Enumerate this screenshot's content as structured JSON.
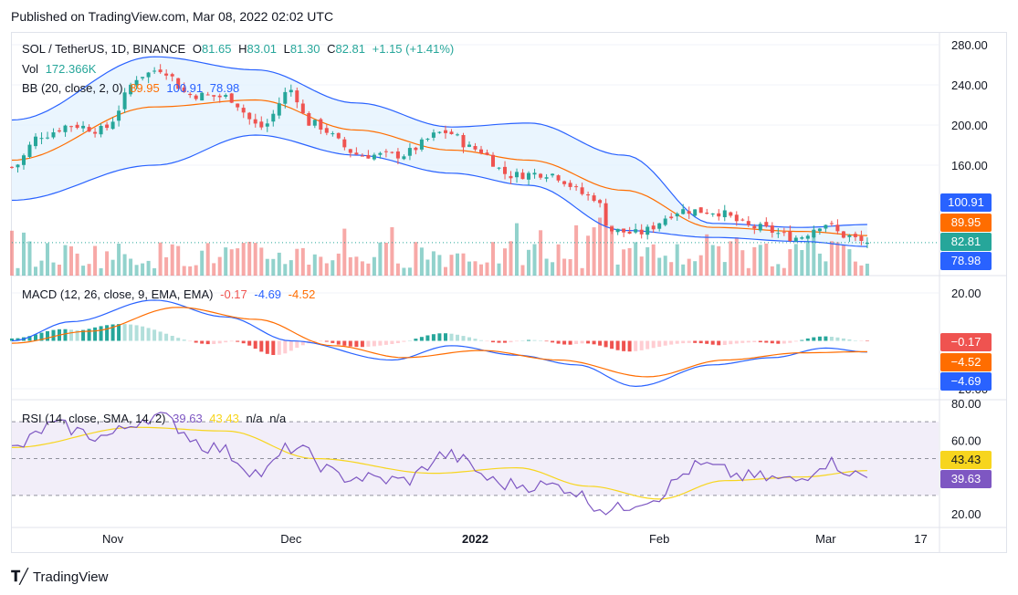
{
  "header": {
    "published": "Published on TradingView.com, Mar 08, 2022 02:02 UTC"
  },
  "footer": {
    "logo_text": "TradingView"
  },
  "price_legend": {
    "symbol": "SOL / TetherUS, 1D, BINANCE",
    "o_label": "O",
    "o": "81.65",
    "h_label": "H",
    "h": "83.01",
    "l_label": "L",
    "l": "81.30",
    "c_label": "C",
    "c": "82.81",
    "change": "+1.15 (+1.41%)",
    "vol_label": "Vol",
    "vol": "172.366K",
    "bb_label": "BB (20, close, 2, 0)",
    "bb_basis": "89.95",
    "bb_upper": "100.91",
    "bb_lower": "78.98"
  },
  "macd_legend": {
    "label": "MACD (12, 26, close, 9, EMA, EMA)",
    "hist": "-0.17",
    "macd": "-4.69",
    "signal": "-4.52"
  },
  "rsi_legend": {
    "label": "RSI (14, close, SMA, 14, 2)",
    "rsi": "39.63",
    "ma": "43.43",
    "na1": "n/a",
    "na2": "n/a"
  },
  "axis_pills": {
    "bb_upper": "100.91",
    "bb_basis": "89.95",
    "last_price": "82.81",
    "bb_lower": "78.98",
    "macd_hist": "−0.17",
    "macd_signal": "−4.52",
    "macd_line": "−4.69",
    "rsi_ma": "43.43",
    "rsi_value": "39.63"
  },
  "colors": {
    "up": "#26a69a",
    "down": "#ef5350",
    "bb_band": "#2962ff",
    "bb_basis": "#ff6d00",
    "bb_fill": "#e3f2fd",
    "macd_line": "#2962ff",
    "signal_line": "#ff6d00",
    "rsi_line": "#7e57c2",
    "rsi_ma": "#f7d51e",
    "rsi_fill": "#ede7f6",
    "last_price": "#26a69a",
    "pill_lower": "#2962ff",
    "macd_hist_pill": "#ef5350"
  },
  "chart_data": [
    {
      "type": "candlestick",
      "pane": "price",
      "y_ticks": [
        "280.00",
        "240.00",
        "200.00",
        "160.00"
      ],
      "ylim": [
        80,
        280
      ],
      "x_ticks": [
        "Nov",
        "Dec",
        "2022",
        "Feb",
        "Mar",
        "17"
      ],
      "x_tick_dates": [
        "2021-11-01",
        "2021-12-01",
        "2022-01-01",
        "2022-02-01",
        "2022-03-01",
        "2022-03-17"
      ],
      "xlim": [
        "2021-10-15",
        "2022-03-20"
      ],
      "last_date": "2022-03-08",
      "price_path_anchors": [
        {
          "date": "2021-10-15",
          "close": 158
        },
        {
          "date": "2021-10-20",
          "close": 190
        },
        {
          "date": "2021-10-25",
          "close": 200
        },
        {
          "date": "2021-10-30",
          "close": 195
        },
        {
          "date": "2021-11-06",
          "close": 250
        },
        {
          "date": "2021-11-09",
          "close": 256
        },
        {
          "date": "2021-11-14",
          "close": 230
        },
        {
          "date": "2021-11-20",
          "close": 228
        },
        {
          "date": "2021-11-26",
          "close": 198
        },
        {
          "date": "2021-12-01",
          "close": 235
        },
        {
          "date": "2021-12-04",
          "close": 202
        },
        {
          "date": "2021-12-13",
          "close": 170
        },
        {
          "date": "2021-12-19",
          "close": 170
        },
        {
          "date": "2021-12-27",
          "close": 193
        },
        {
          "date": "2022-01-01",
          "close": 176
        },
        {
          "date": "2022-01-07",
          "close": 150
        },
        {
          "date": "2022-01-13",
          "close": 152
        },
        {
          "date": "2022-01-21",
          "close": 128
        },
        {
          "date": "2022-01-24",
          "close": 95
        },
        {
          "date": "2022-01-28",
          "close": 92
        },
        {
          "date": "2022-02-05",
          "close": 115
        },
        {
          "date": "2022-02-10",
          "close": 114
        },
        {
          "date": "2022-02-17",
          "close": 98
        },
        {
          "date": "2022-02-24",
          "close": 88
        },
        {
          "date": "2022-03-01",
          "close": 102
        },
        {
          "date": "2022-03-04",
          "close": 90
        },
        {
          "date": "2022-03-08",
          "close": 82.81
        }
      ],
      "bb_upper_anchors": [
        {
          "date": "2021-10-15",
          "value": 205
        },
        {
          "date": "2021-11-08",
          "value": 268
        },
        {
          "date": "2021-11-25",
          "value": 255
        },
        {
          "date": "2021-12-12",
          "value": 222
        },
        {
          "date": "2021-12-28",
          "value": 198
        },
        {
          "date": "2022-01-10",
          "value": 202
        },
        {
          "date": "2022-01-26",
          "value": 170
        },
        {
          "date": "2022-02-10",
          "value": 102
        },
        {
          "date": "2022-02-25",
          "value": 98
        },
        {
          "date": "2022-03-08",
          "value": 100.91
        }
      ],
      "bb_basis_anchors": [
        {
          "date": "2021-10-15",
          "value": 165
        },
        {
          "date": "2021-11-08",
          "value": 218
        },
        {
          "date": "2021-11-25",
          "value": 225
        },
        {
          "date": "2021-12-12",
          "value": 195
        },
        {
          "date": "2021-12-28",
          "value": 175
        },
        {
          "date": "2022-01-10",
          "value": 165
        },
        {
          "date": "2022-01-26",
          "value": 135
        },
        {
          "date": "2022-02-10",
          "value": 98
        },
        {
          "date": "2022-02-25",
          "value": 94
        },
        {
          "date": "2022-03-08",
          "value": 89.95
        }
      ],
      "bb_lower_anchors": [
        {
          "date": "2021-10-15",
          "value": 125
        },
        {
          "date": "2021-11-08",
          "value": 160
        },
        {
          "date": "2021-11-25",
          "value": 190
        },
        {
          "date": "2021-12-12",
          "value": 170
        },
        {
          "date": "2021-12-28",
          "value": 152
        },
        {
          "date": "2022-01-10",
          "value": 140
        },
        {
          "date": "2022-01-26",
          "value": 95
        },
        {
          "date": "2022-02-10",
          "value": 88
        },
        {
          "date": "2022-02-25",
          "value": 84
        },
        {
          "date": "2022-03-08",
          "value": 78.98
        }
      ],
      "last_price": 82.81
    },
    {
      "type": "bar",
      "pane": "volume",
      "series": [
        {
          "name": "Vol",
          "last_value": "172.366K"
        }
      ]
    },
    {
      "type": "line",
      "pane": "macd",
      "y_ticks": [
        "20.00",
        "-20.00"
      ],
      "ylim": [
        -24,
        24
      ],
      "macd_anchors": [
        {
          "date": "2021-10-15",
          "value": 0
        },
        {
          "date": "2021-10-25",
          "value": 8
        },
        {
          "date": "2021-11-08",
          "value": 17
        },
        {
          "date": "2021-11-20",
          "value": 10
        },
        {
          "date": "2021-12-01",
          "value": 0
        },
        {
          "date": "2021-12-18",
          "value": -8
        },
        {
          "date": "2021-12-28",
          "value": -2
        },
        {
          "date": "2022-01-08",
          "value": -6
        },
        {
          "date": "2022-01-18",
          "value": -10
        },
        {
          "date": "2022-01-28",
          "value": -19
        },
        {
          "date": "2022-02-10",
          "value": -10
        },
        {
          "date": "2022-02-20",
          "value": -7
        },
        {
          "date": "2022-03-01",
          "value": -3
        },
        {
          "date": "2022-03-08",
          "value": -4.69
        }
      ],
      "signal_anchors": [
        {
          "date": "2021-10-15",
          "value": -1
        },
        {
          "date": "2021-10-28",
          "value": 4
        },
        {
          "date": "2021-11-12",
          "value": 14
        },
        {
          "date": "2021-11-25",
          "value": 9
        },
        {
          "date": "2021-12-08",
          "value": -2
        },
        {
          "date": "2021-12-20",
          "value": -7
        },
        {
          "date": "2022-01-02",
          "value": -4
        },
        {
          "date": "2022-01-15",
          "value": -8
        },
        {
          "date": "2022-01-30",
          "value": -15
        },
        {
          "date": "2022-02-12",
          "value": -8
        },
        {
          "date": "2022-02-25",
          "value": -5
        },
        {
          "date": "2022-03-08",
          "value": -4.52
        }
      ],
      "hist_last": -0.17
    },
    {
      "type": "line",
      "pane": "rsi",
      "y_ticks": [
        "80.00",
        "60.00",
        "20.00"
      ],
      "ylim": [
        18,
        82
      ],
      "bands": [
        70,
        50,
        30
      ],
      "rsi_anchors": [
        {
          "date": "2021-10-15",
          "value": 55
        },
        {
          "date": "2021-10-22",
          "value": 68
        },
        {
          "date": "2021-10-30",
          "value": 62
        },
        {
          "date": "2021-11-08",
          "value": 73
        },
        {
          "date": "2021-11-18",
          "value": 56
        },
        {
          "date": "2021-11-26",
          "value": 42
        },
        {
          "date": "2021-12-01",
          "value": 56
        },
        {
          "date": "2021-12-10",
          "value": 40
        },
        {
          "date": "2021-12-20",
          "value": 38
        },
        {
          "date": "2021-12-27",
          "value": 52
        },
        {
          "date": "2022-01-06",
          "value": 36
        },
        {
          "date": "2022-01-15",
          "value": 35
        },
        {
          "date": "2022-01-24",
          "value": 22
        },
        {
          "date": "2022-01-30",
          "value": 28
        },
        {
          "date": "2022-02-08",
          "value": 46
        },
        {
          "date": "2022-02-16",
          "value": 40
        },
        {
          "date": "2022-02-24",
          "value": 38
        },
        {
          "date": "2022-03-01",
          "value": 48
        },
        {
          "date": "2022-03-08",
          "value": 39.63
        }
      ],
      "ma_anchors": [
        {
          "date": "2021-10-15",
          "value": 56
        },
        {
          "date": "2021-11-05",
          "value": 67
        },
        {
          "date": "2021-11-20",
          "value": 65
        },
        {
          "date": "2021-12-05",
          "value": 50
        },
        {
          "date": "2021-12-25",
          "value": 42
        },
        {
          "date": "2022-01-08",
          "value": 45
        },
        {
          "date": "2022-01-20",
          "value": 35
        },
        {
          "date": "2022-02-01",
          "value": 28
        },
        {
          "date": "2022-02-12",
          "value": 38
        },
        {
          "date": "2022-02-25",
          "value": 40
        },
        {
          "date": "2022-03-08",
          "value": 43.43
        }
      ],
      "last_value": 39.63,
      "ma_last": 43.43
    }
  ]
}
